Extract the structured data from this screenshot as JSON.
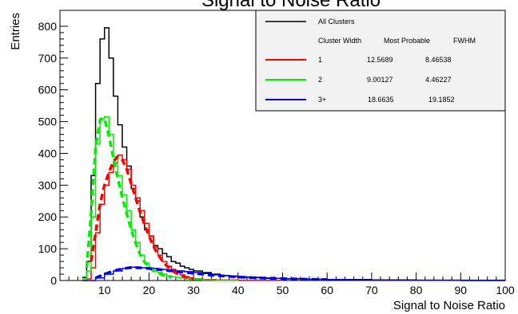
{
  "chart_data": {
    "type": "line",
    "title": "Signal to Noise Ratio",
    "xlabel": "Signal to Noise Ratio",
    "ylabel": "Entries",
    "xlim": [
      0,
      100
    ],
    "ylim": [
      0,
      850
    ],
    "xticks": [
      10,
      20,
      30,
      40,
      50,
      60,
      70,
      80,
      90,
      100
    ],
    "yticks": [
      0,
      100,
      200,
      300,
      400,
      500,
      600,
      700,
      800
    ],
    "grid": false,
    "legend_position": "top-right",
    "legend": {
      "header_label": "All Clusters",
      "columns": [
        "Cluster Width",
        "Most Probable",
        "FWHM"
      ],
      "rows": [
        {
          "width": "1",
          "most_probable": "12.5689",
          "fwhm": "8.46538",
          "color": "#ff0000"
        },
        {
          "width": "2",
          "most_probable": "9.00127",
          "fwhm": "4.46227",
          "color": "#00ee00"
        },
        {
          "width": "3+",
          "most_probable": "18.6635",
          "fwhm": "19.1852",
          "color": "#0000ee"
        }
      ]
    },
    "series": [
      {
        "name": "All Clusters",
        "style": "histogram",
        "color": "#000000",
        "x": [
          5,
          6,
          7,
          8,
          9,
          10,
          11,
          12,
          13,
          14,
          15,
          16,
          17,
          18,
          19,
          20,
          21,
          22,
          23,
          24,
          25,
          26,
          27,
          28,
          29,
          30,
          32,
          34,
          36,
          38,
          40,
          45,
          50,
          55,
          60,
          70,
          80,
          90,
          100
        ],
        "y": [
          10,
          60,
          330,
          620,
          760,
          795,
          700,
          580,
          490,
          420,
          360,
          290,
          250,
          200,
          160,
          140,
          110,
          100,
          85,
          75,
          60,
          55,
          45,
          40,
          35,
          30,
          25,
          20,
          15,
          12,
          10,
          7,
          5,
          4,
          3,
          2,
          1,
          1,
          0
        ]
      },
      {
        "name": "1",
        "style": "histogram",
        "color": "#ff0000",
        "x": [
          5,
          6,
          7,
          8,
          9,
          10,
          11,
          12,
          13,
          14,
          15,
          16,
          17,
          18,
          19,
          20,
          21,
          22,
          23,
          24,
          25,
          26,
          27,
          28,
          29,
          30,
          32,
          35,
          40,
          50
        ],
        "y": [
          0,
          5,
          40,
          150,
          240,
          300,
          340,
          370,
          395,
          380,
          350,
          300,
          260,
          220,
          180,
          140,
          105,
          80,
          60,
          45,
          35,
          25,
          18,
          12,
          8,
          5,
          3,
          2,
          1,
          0
        ]
      },
      {
        "name": "2",
        "style": "histogram",
        "color": "#00ee00",
        "x": [
          5,
          6,
          7,
          8,
          9,
          10,
          11,
          12,
          13,
          14,
          15,
          16,
          17,
          18,
          19,
          20,
          21,
          22,
          23,
          24,
          25,
          26,
          27,
          28,
          29,
          30,
          32,
          35,
          40
        ],
        "y": [
          5,
          30,
          200,
          430,
          510,
          515,
          460,
          390,
          330,
          270,
          220,
          160,
          120,
          80,
          55,
          40,
          30,
          25,
          20,
          15,
          12,
          10,
          8,
          6,
          4,
          3,
          2,
          1,
          0
        ]
      },
      {
        "name": "3+",
        "style": "histogram",
        "color": "#0000ee",
        "x": [
          5,
          8,
          10,
          12,
          14,
          16,
          18,
          20,
          22,
          24,
          26,
          28,
          30,
          32,
          34,
          36,
          38,
          40,
          42,
          44,
          46,
          48,
          50,
          55,
          60,
          65,
          70,
          80,
          90,
          100
        ],
        "y": [
          0,
          8,
          20,
          30,
          38,
          42,
          40,
          38,
          35,
          32,
          30,
          28,
          25,
          22,
          18,
          16,
          14,
          12,
          10,
          9,
          8,
          7,
          6,
          4,
          3,
          2,
          1,
          1,
          0,
          0
        ]
      },
      {
        "name": "1",
        "style": "fit",
        "color": "#ff0000",
        "x": [
          7,
          8,
          9,
          10,
          11,
          12,
          13,
          14,
          15,
          16,
          17,
          18,
          19,
          20,
          21,
          22,
          23,
          24,
          25,
          26,
          27,
          28,
          29,
          30
        ],
        "y": [
          60,
          150,
          240,
          300,
          340,
          375,
          390,
          380,
          350,
          305,
          260,
          215,
          175,
          140,
          108,
          82,
          62,
          46,
          34,
          24,
          17,
          12,
          8,
          5
        ]
      },
      {
        "name": "2",
        "style": "fit",
        "color": "#00ee00",
        "x": [
          6,
          7,
          8,
          9,
          10,
          11,
          12,
          13,
          14,
          15,
          16,
          17,
          18,
          19,
          20,
          21,
          22,
          23,
          24,
          25
        ],
        "y": [
          40,
          210,
          420,
          505,
          510,
          455,
          385,
          320,
          262,
          210,
          160,
          118,
          82,
          58,
          42,
          31,
          24,
          18,
          13,
          10
        ]
      },
      {
        "name": "3+",
        "style": "fit",
        "color": "#0000ee",
        "x": [
          8,
          10,
          12,
          14,
          16,
          18,
          20,
          22,
          24,
          26,
          28,
          30,
          32,
          34,
          36,
          38,
          40,
          45,
          50,
          55,
          60
        ],
        "y": [
          8,
          20,
          30,
          37,
          41,
          40,
          38,
          35,
          32,
          29,
          26,
          23,
          20,
          17,
          15,
          13,
          11,
          8,
          6,
          4,
          3
        ]
      }
    ]
  }
}
